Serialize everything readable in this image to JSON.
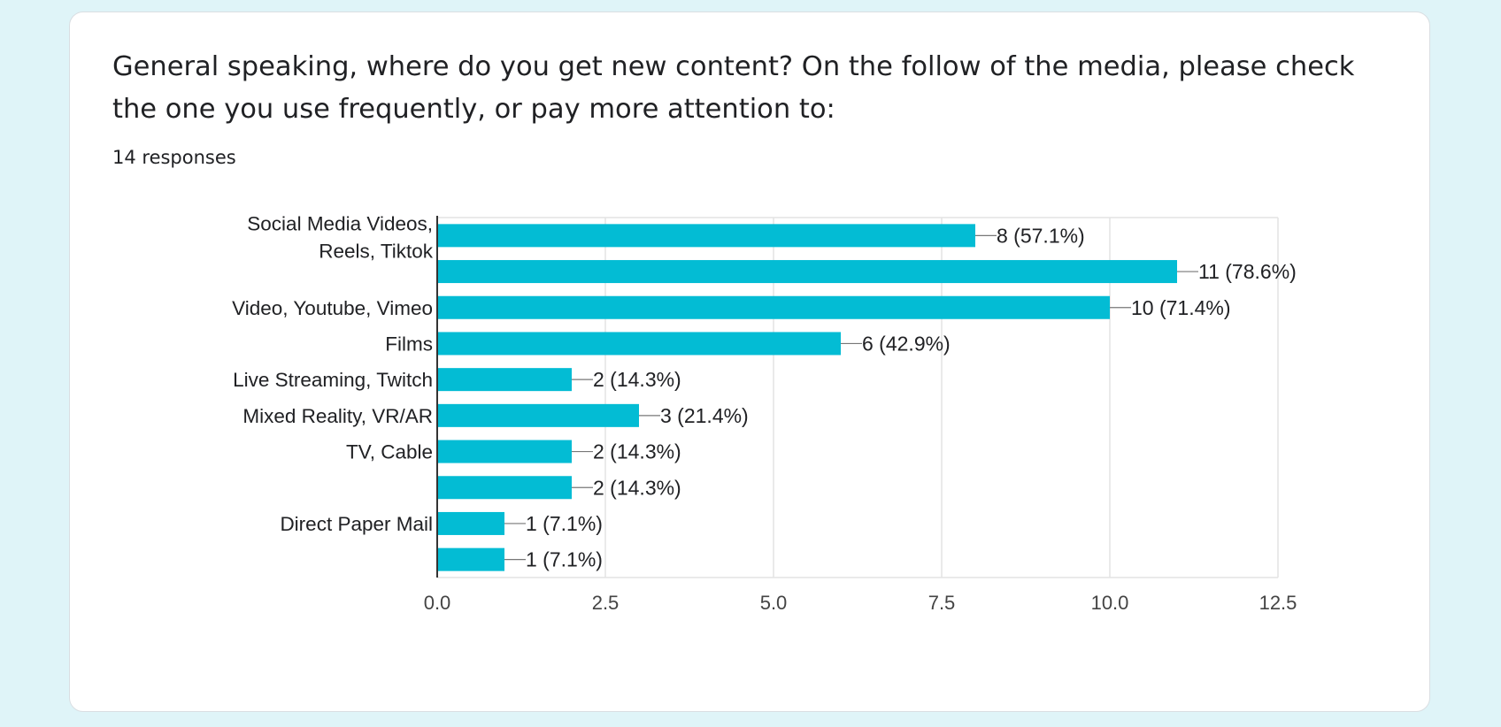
{
  "question": {
    "title": "General speaking, where do you get new content? On the follow of the media, please check the one you use frequently, or pay more attention to:",
    "responses": "14 responses"
  },
  "colors": {
    "bar": "#03bcd4",
    "grid": "#e3e3e3",
    "axis": "#333333",
    "text": "#202124",
    "background": "#dff4f8"
  },
  "chart_data": {
    "type": "bar",
    "orientation": "horizontal",
    "categories": [
      "Social Media Videos, Reels, Tiktok",
      "",
      "Video, Youtube, Vimeo",
      "Films",
      "Live Streaming, Twitch",
      "Mixed Reality, VR/AR",
      "TV, Cable",
      "",
      "Direct Paper Mail",
      ""
    ],
    "values": [
      8,
      11,
      10,
      6,
      2,
      3,
      2,
      2,
      1,
      1
    ],
    "data_labels": [
      "8 (57.1%)",
      "11 (78.6%)",
      "10 (71.4%)",
      "6 (42.9%)",
      "2 (14.3%)",
      "3 (21.4%)",
      "2 (14.3%)",
      "2 (14.3%)",
      "1 (7.1%)",
      "1 (7.1%)"
    ],
    "xlim": [
      0,
      12.5
    ],
    "xticks": [
      "0.0",
      "2.5",
      "5.0",
      "7.5",
      "10.0",
      "12.5"
    ],
    "title": "",
    "xlabel": "",
    "ylabel": "",
    "grid": true,
    "legend": "none"
  }
}
